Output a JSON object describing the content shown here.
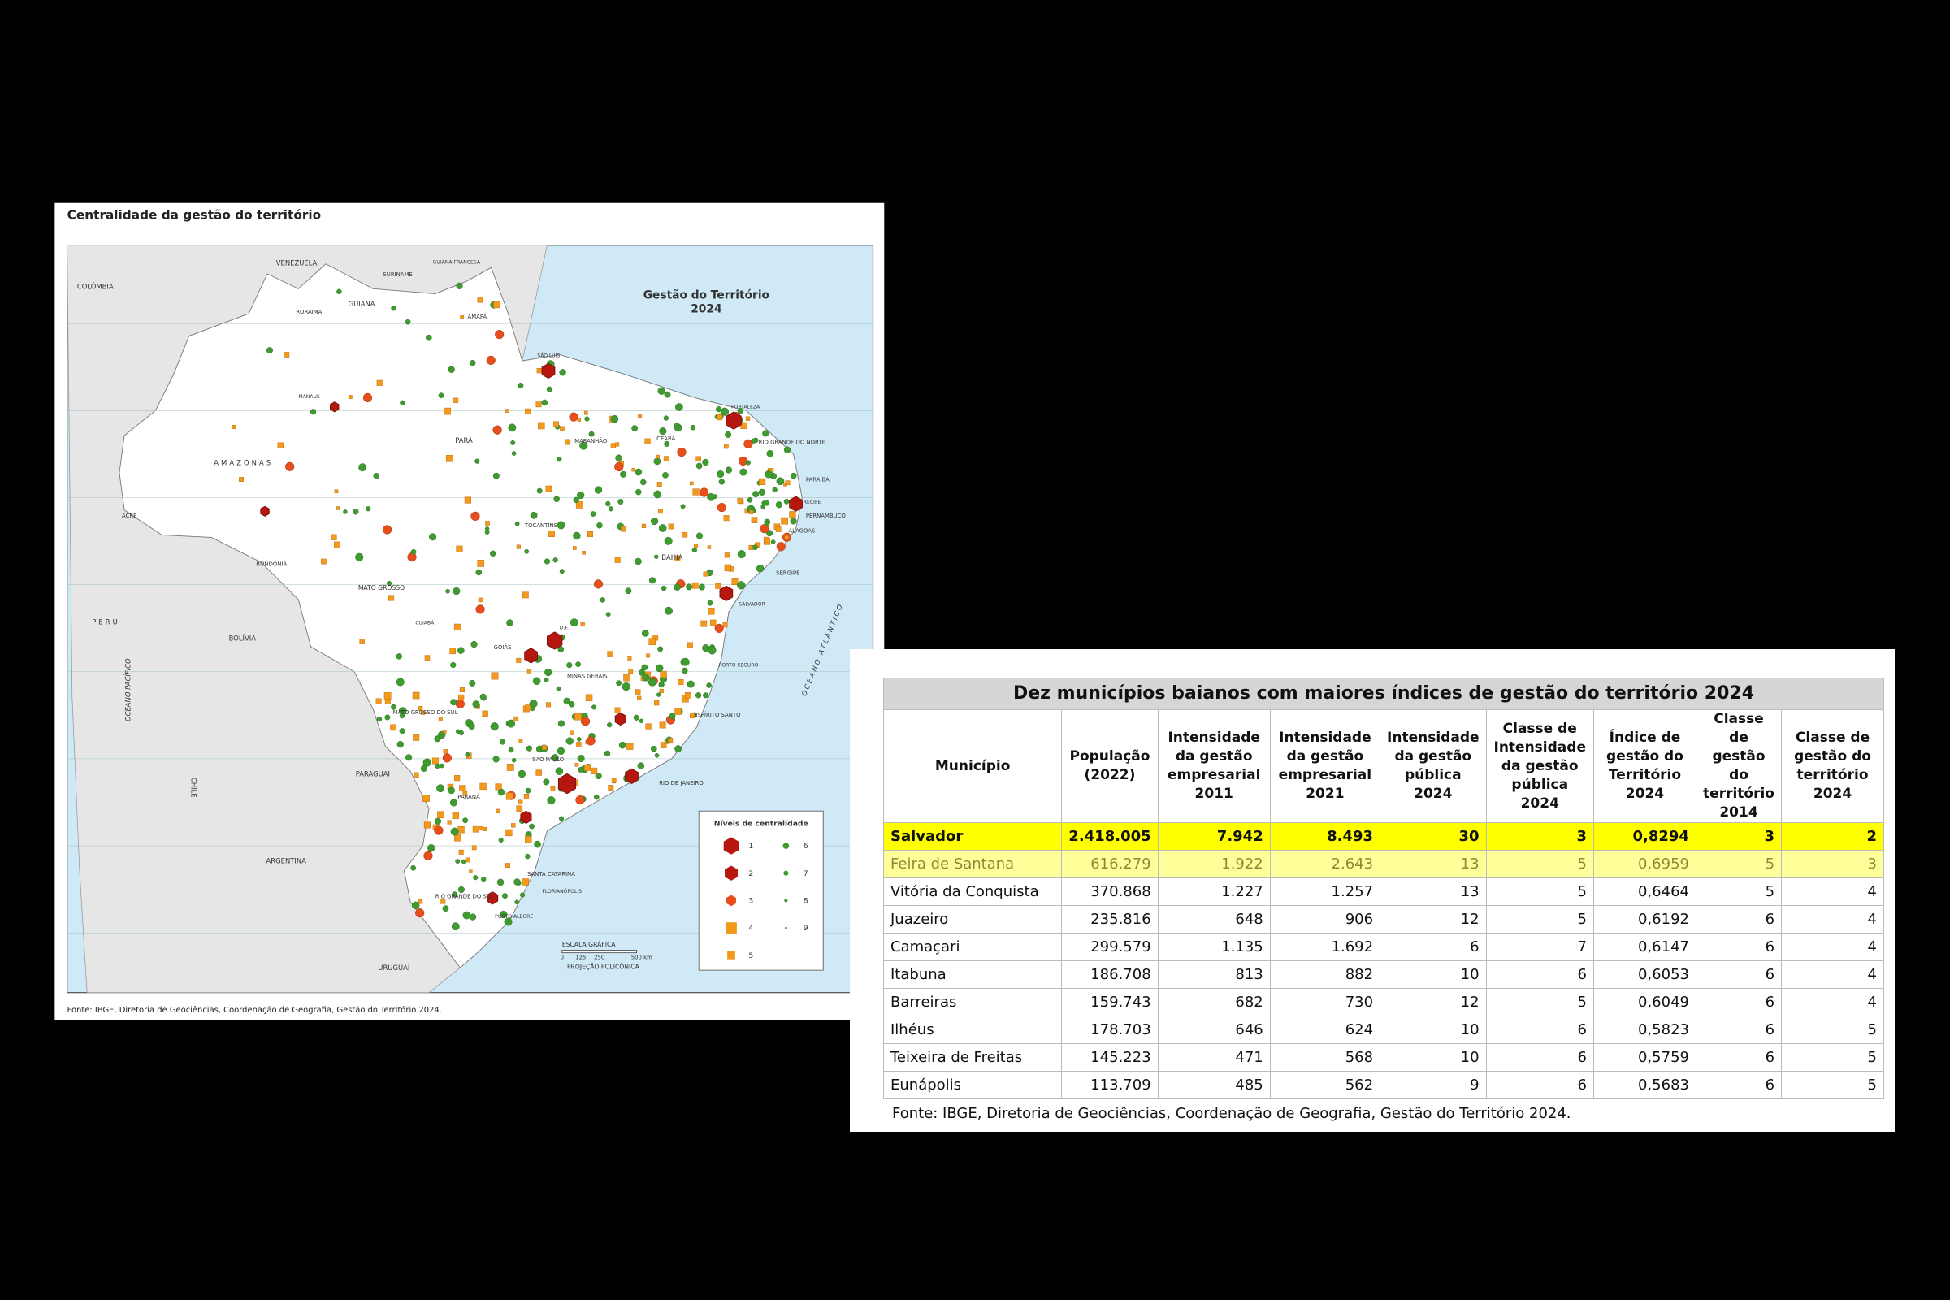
{
  "map": {
    "title": "Centralidade da gestão do território",
    "heading": [
      "Gestão do Território",
      "2024"
    ],
    "labels": [
      "VENEZUELA",
      "COLÔMBIA",
      "GUIANA",
      "SURINAME",
      "GUIANA FRANCESA",
      "RORAIMA",
      "AMAPÁ",
      "AMAZONAS",
      "PARÁ",
      "MARANHÃO",
      "CEARÁ",
      "RIO GRANDE DO NORTE",
      "PARAÍBA",
      "PERNAMBUCO",
      "ALAGOAS",
      "SERGIPE",
      "ACRE",
      "RONDÔNIA",
      "MATO GROSSO",
      "TOCANTINS",
      "BAHIA",
      "GOIÁS",
      "MINAS GERAIS",
      "ESPÍRITO SANTO",
      "MATO GROSSO DO SUL",
      "SÃO PAULO",
      "RIO DE JANEIRO",
      "PARANÁ",
      "SANTA CATARINA",
      "RIO GRANDE DO SUL",
      "PERU",
      "BOLÍVIA",
      "PARAGUAI",
      "ARGENTINA",
      "URUGUAI",
      "CHILE",
      "OCEANO PACÍFICO",
      "OCEANO ATLÂNTICO",
      "FORTALEZA",
      "SALVADOR",
      "RECIFE",
      "MANAUS",
      "D.F.",
      "PORTO ALEGRE",
      "FLORIANÓPOLIS",
      "PORTO SEGURO",
      "CUIABÁ",
      "SÃO LUÍS"
    ],
    "legend": {
      "title": "Níveis de centralidade",
      "items": [
        "1",
        "2",
        "3",
        "4",
        "5",
        "6",
        "7",
        "8",
        "9"
      ]
    },
    "scale": {
      "title": "ESCALA GRÁFICA",
      "ticks": [
        "0",
        "125",
        "250",
        "500 km"
      ],
      "projection": "PROJEÇÃO POLICÔNICA"
    },
    "source": "Fonte: IBGE, Diretoria de Geociências, Coordenação de Geografia, Gestão do Território 2024."
  },
  "table": {
    "title": "Dez municípios baianos com maiores índices de gestão do território 2024",
    "headers": [
      "Município",
      "População (2022)",
      "Intensidade da gestão empresarial 2011",
      "Intensidade da gestão empresarial 2021",
      "Intensidade da gestão pública 2024",
      "Classe de Intensidade da gestão pública 2024",
      "Índice de gestão do Território 2024",
      "Classe de gestão do território 2014",
      "Classe de gestão do território 2024"
    ],
    "rows": [
      [
        "Salvador",
        "2.418.005",
        "7.942",
        "8.493",
        "30",
        "3",
        "0,8294",
        "3",
        "2"
      ],
      [
        "Feira de Santana",
        "616.279",
        "1.922",
        "2.643",
        "13",
        "5",
        "0,6959",
        "5",
        "3"
      ],
      [
        "Vitória da Conquista",
        "370.868",
        "1.227",
        "1.257",
        "13",
        "5",
        "0,6464",
        "5",
        "4"
      ],
      [
        "Juazeiro",
        "235.816",
        "648",
        "906",
        "12",
        "5",
        "0,6192",
        "6",
        "4"
      ],
      [
        "Camaçari",
        "299.579",
        "1.135",
        "1.692",
        "6",
        "7",
        "0,6147",
        "6",
        "4"
      ],
      [
        "Itabuna",
        "186.708",
        "813",
        "882",
        "10",
        "6",
        "0,6053",
        "6",
        "4"
      ],
      [
        "Barreiras",
        "159.743",
        "682",
        "730",
        "12",
        "5",
        "0,6049",
        "6",
        "4"
      ],
      [
        "Ilhéus",
        "178.703",
        "646",
        "624",
        "10",
        "6",
        "0,5823",
        "6",
        "5"
      ],
      [
        "Teixeira de Freitas",
        "145.223",
        "471",
        "568",
        "10",
        "6",
        "0,5759",
        "6",
        "5"
      ],
      [
        "Eunápolis",
        "113.709",
        "485",
        "562",
        "9",
        "6",
        "0,5683",
        "6",
        "5"
      ]
    ],
    "source": "Fonte: IBGE, Diretoria de Geociências, Coordenação de Geografia, Gestão do Território 2024."
  }
}
